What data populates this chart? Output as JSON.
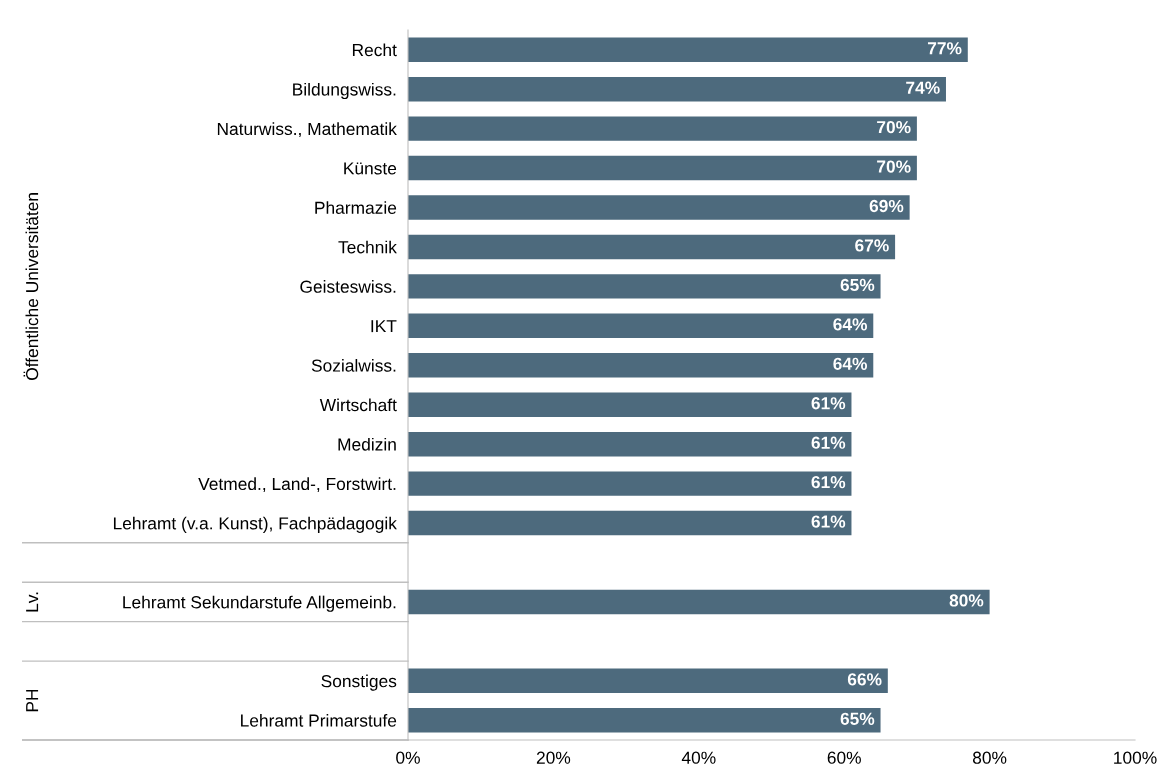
{
  "chart_data": {
    "type": "bar",
    "orientation": "horizontal",
    "categories": [
      "Recht",
      "Bildungswiss.",
      "Naturwiss., Mathematik",
      "Künste",
      "Pharmazie",
      "Technik",
      "Geisteswiss.",
      "IKT",
      "Sozialwiss.",
      "Wirtschaft",
      "Medizin",
      "Vetmed., Land-, Forstwirt.",
      "Lehramt (v.a. Kunst), Fachpädagogik",
      null,
      "Lehramt Sekundarstufe Allgemeinb.",
      null,
      "Sonstiges",
      "Lehramt Primarstufe"
    ],
    "values": [
      77,
      74,
      70,
      70,
      69,
      67,
      65,
      64,
      64,
      61,
      61,
      61,
      61,
      null,
      80,
      null,
      66,
      65
    ],
    "value_labels": [
      "77%",
      "74%",
      "70%",
      "70%",
      "69%",
      "67%",
      "65%",
      "64%",
      "64%",
      "61%",
      "61%",
      "61%",
      "61%",
      null,
      "80%",
      null,
      "66%",
      "65%"
    ],
    "color": "#4d6a7d",
    "xlim": [
      0,
      100
    ],
    "xticks": [
      {
        "value": 0,
        "label": "0%"
      },
      {
        "value": 20,
        "label": "20%"
      },
      {
        "value": 40,
        "label": "40%"
      },
      {
        "value": 60,
        "label": "60%"
      },
      {
        "value": 80,
        "label": "80%"
      },
      {
        "value": 100,
        "label": "100%"
      }
    ],
    "annotations": [
      "Öffentliche Universitäten",
      "Lv.",
      "PH"
    ],
    "grid": false
  }
}
